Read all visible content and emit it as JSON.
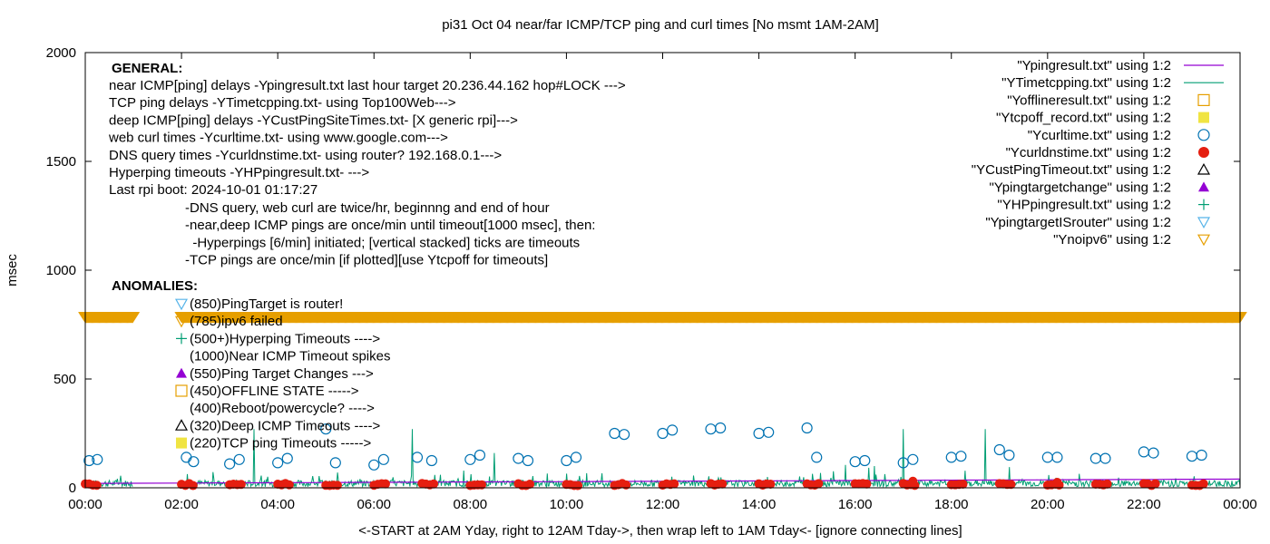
{
  "chart_data": {
    "type": "scatter",
    "title": "pi31 Oct 04  near/far ICMP/TCP ping and curl times [No msmt 1AM-2AM]",
    "xlabel": "<-START at 2AM Yday, right to 12AM Tday->, then wrap left to 1AM Tday<- [ignore connecting lines]",
    "ylabel": "msec",
    "xlim": [
      0,
      24
    ],
    "ylim": [
      0,
      2000
    ],
    "x_ticks": [
      "00:00",
      "02:00",
      "04:00",
      "06:00",
      "08:00",
      "10:00",
      "12:00",
      "14:00",
      "16:00",
      "18:00",
      "20:00",
      "22:00",
      "00:00"
    ],
    "y_ticks": [
      "0",
      "500",
      "1000",
      "1500",
      "2000"
    ],
    "legend": [
      {
        "label": "\"Ypingresult.txt\" using 1:2",
        "symbol": "line",
        "color": "#9400d3"
      },
      {
        "label": "\"YTimetcpping.txt\" using 1:2",
        "symbol": "line",
        "color": "#009e73"
      },
      {
        "label": "\"Yofflineresult.txt\" using 1:2",
        "symbol": "open-square",
        "color": "#e69f00"
      },
      {
        "label": "\"Ytcpoff_record.txt\" using 1:2",
        "symbol": "filled-square",
        "color": "#f0e442"
      },
      {
        "label": "\"Ycurltime.txt\" using 1:2",
        "symbol": "open-circle",
        "color": "#0072b2"
      },
      {
        "label": "\"Ycurldnstime.txt\" using 1:2",
        "symbol": "filled-circle",
        "color": "#e51e10"
      },
      {
        "label": "\"YCustPingTimeout.txt\" using 1:2",
        "symbol": "open-triangle",
        "color": "#000000"
      },
      {
        "label": "\"Ypingtargetchange\" using 1:2",
        "symbol": "filled-triangle",
        "color": "#9400d3"
      },
      {
        "label": "\"YHPpingresult.txt\" using 1:2",
        "symbol": "plus",
        "color": "#009e73"
      },
      {
        "label": "\"YpingtargetISrouter\" using 1:2",
        "symbol": "open-triangle-down",
        "color": "#56b4e9"
      },
      {
        "label": "\"Ynoipv6\" using 1:2",
        "symbol": "open-triangle-down",
        "color": "#e69f00"
      }
    ],
    "annotations_general": [
      "near ICMP[ping] delays -Ypingresult.txt last hour target 20.236.44.162 hop#LOCK --->",
      "TCP ping delays -YTimetcpping.txt- using Top100Web--->",
      "deep ICMP[ping] delays -YCustPingSiteTimes.txt- [X generic rpi]--->",
      "web curl times -Ycurltime.txt- using www.google.com--->",
      "DNS query times -Ycurldnstime.txt- using router? 192.168.0.1--->",
      "Hyperping timeouts -YHPpingresult.txt- --->",
      "Last rpi boot: 2024-10-01 01:17:27"
    ],
    "annotations_notes": [
      "-DNS query, web curl are twice/hr, beginnng and end of hour",
      "-near,deep ICMP pings are once/min until timeout[1000 msec], then:",
      "  -Hyperpings [6/min] initiated; [vertical stacked] ticks are timeouts",
      "-TCP pings are once/min [if plotted][use Ytcpoff for timeouts]"
    ],
    "general_heading": "GENERAL:",
    "anomalies_heading": "ANOMALIES:",
    "anomalies": [
      {
        "text": "(850)PingTarget is router!",
        "symbol": "open-triangle-down",
        "color": "#56b4e9"
      },
      {
        "text": "(785)ipv6 failed",
        "symbol": "open-triangle-down",
        "color": "#e69f00"
      },
      {
        "text": "(500+)Hyperping Timeouts ---->",
        "symbol": "plus",
        "color": "#009e73"
      },
      {
        "text": "(1000)Near ICMP Timeout spikes",
        "symbol": "none",
        "color": ""
      },
      {
        "text": "(550)Ping Target Changes --->",
        "symbol": "filled-triangle",
        "color": "#9400d3"
      },
      {
        "text": "(450)OFFLINE STATE ----->",
        "symbol": "open-square",
        "color": "#e69f00"
      },
      {
        "text": "(400)Reboot/powercycle? ---->",
        "symbol": "none",
        "color": ""
      },
      {
        "text": "(320)Deep ICMP Timeouts ---->",
        "symbol": "open-triangle",
        "color": "#000000"
      },
      {
        "text": "(220)TCP ping Timeouts ----->",
        "symbol": "filled-square",
        "color": "#f0e442"
      }
    ],
    "series": [
      {
        "name": "Ynoipv6",
        "note": "dense row of markers at y=785",
        "y": 785,
        "x_range": [
          0,
          24
        ],
        "gaps": [
          [
            1.0,
            2.0
          ]
        ]
      },
      {
        "name": "Ycurltime",
        "points": [
          [
            0.08,
            125
          ],
          [
            0.25,
            130
          ],
          [
            2.1,
            140
          ],
          [
            2.25,
            120
          ],
          [
            3.0,
            110
          ],
          [
            3.2,
            130
          ],
          [
            4.0,
            115
          ],
          [
            4.2,
            135
          ],
          [
            5.0,
            270
          ],
          [
            5.2,
            115
          ],
          [
            6.0,
            105
          ],
          [
            6.2,
            130
          ],
          [
            6.9,
            140
          ],
          [
            7.2,
            125
          ],
          [
            8.0,
            130
          ],
          [
            8.2,
            150
          ],
          [
            9.0,
            135
          ],
          [
            9.2,
            125
          ],
          [
            10.0,
            125
          ],
          [
            10.2,
            140
          ],
          [
            11.0,
            250
          ],
          [
            11.2,
            245
          ],
          [
            12.0,
            250
          ],
          [
            12.2,
            265
          ],
          [
            13.0,
            270
          ],
          [
            13.2,
            275
          ],
          [
            14.0,
            250
          ],
          [
            14.2,
            255
          ],
          [
            15.0,
            275
          ],
          [
            15.2,
            140
          ],
          [
            16.0,
            120
          ],
          [
            16.2,
            125
          ],
          [
            17.0,
            115
          ],
          [
            17.2,
            130
          ],
          [
            18.0,
            140
          ],
          [
            18.2,
            145
          ],
          [
            19.0,
            175
          ],
          [
            19.2,
            150
          ],
          [
            20.0,
            140
          ],
          [
            20.2,
            140
          ],
          [
            21.0,
            135
          ],
          [
            21.2,
            135
          ],
          [
            22.0,
            165
          ],
          [
            22.2,
            160
          ],
          [
            23.0,
            145
          ],
          [
            23.2,
            150
          ]
        ]
      },
      {
        "name": "Ycurldnstime",
        "note": "clusters of red dots near y=5-30 at the start of each hour",
        "cluster_hours": [
          0,
          2,
          3,
          4,
          5,
          6,
          7,
          8,
          9,
          10,
          11,
          12,
          13,
          14,
          15,
          16,
          17,
          18,
          19,
          20,
          21,
          22,
          23
        ],
        "y": 10
      },
      {
        "name": "Ypingresult",
        "note": "purple line near 25-40 msec across the day",
        "y_range": [
          20,
          40
        ]
      },
      {
        "name": "YTimetcpping",
        "note": "green noisy line 0-60 msec with spikes",
        "spikes": [
          [
            3.5,
            270
          ],
          [
            6.8,
            270
          ],
          [
            8.5,
            160
          ],
          [
            15.8,
            105
          ],
          [
            16.4,
            100
          ],
          [
            17.0,
            270
          ],
          [
            18.7,
            270
          ],
          [
            19.2,
            95
          ]
        ]
      }
    ]
  }
}
